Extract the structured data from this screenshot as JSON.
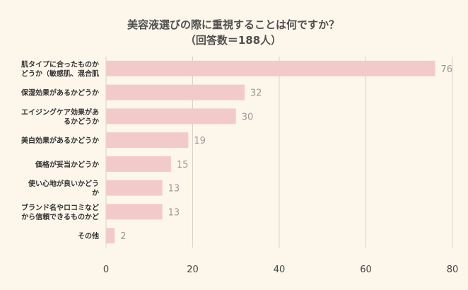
{
  "chart_data": {
    "type": "bar",
    "orientation": "horizontal",
    "title": [
      "美容液選びの際に重視することは何ですか？",
      "（回答数＝188人）"
    ],
    "categories": [
      [
        "肌タイプに合ったものか",
        "どうか（敏感肌、混合肌"
      ],
      [
        "保湿効果があるかどうか"
      ],
      [
        "エイジングケア効果があ",
        "るかどうか"
      ],
      [
        "美白効果があるかどうか"
      ],
      [
        "価格が妥当かどうか"
      ],
      [
        "使い心地が良いかどう",
        "か"
      ],
      [
        "ブランド名やロコミなど",
        "から信頼できるものかど"
      ],
      [
        "その他"
      ]
    ],
    "values": [
      76,
      32,
      30,
      19,
      15,
      13,
      13,
      2
    ],
    "xlim": [
      0,
      80
    ],
    "xticks": [
      0,
      20,
      40,
      60,
      80
    ],
    "grid": true,
    "bar_color": "#f3caca",
    "background": "#fdf6ea"
  }
}
